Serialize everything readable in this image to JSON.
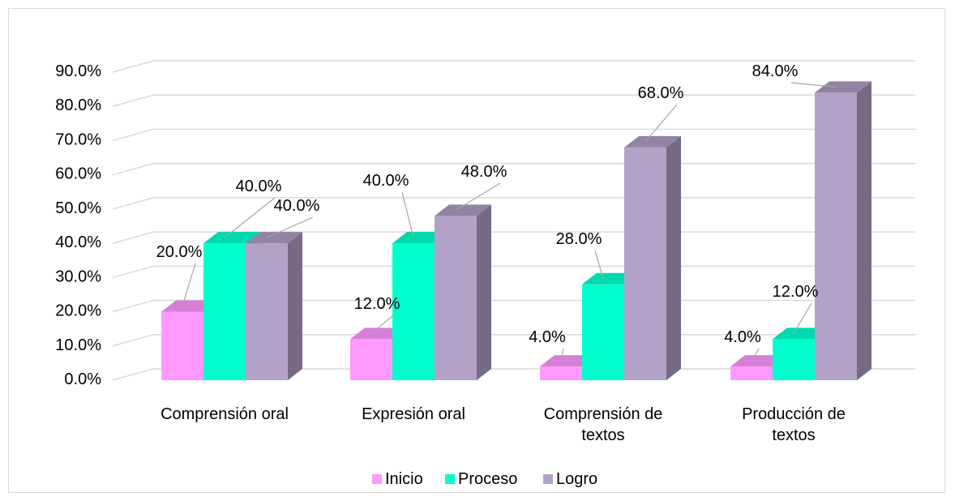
{
  "chart_data": {
    "type": "bar",
    "title": "",
    "xlabel": "",
    "ylabel": "",
    "ylim": [
      0,
      90
    ],
    "y_ticks": [
      "0.0%",
      "10.0%",
      "20.0%",
      "30.0%",
      "40.0%",
      "50.0%",
      "60.0%",
      "70.0%",
      "80.0%",
      "90.0%"
    ],
    "y_tick_values": [
      0,
      10,
      20,
      30,
      40,
      50,
      60,
      70,
      80,
      90
    ],
    "grid": true,
    "legend_position": "bottom",
    "style": "3d-clustered-column",
    "categories": [
      [
        "Comprensión oral"
      ],
      [
        "Expresión oral"
      ],
      [
        "Comprensión de",
        "textos"
      ],
      [
        "Producción de",
        "textos"
      ]
    ],
    "series": [
      {
        "name": "Inicio",
        "color": "#ff99ff",
        "side_color": "#b86db8",
        "top_color": "#d67fd6",
        "values": [
          20.0,
          12.0,
          4.0,
          4.0
        ],
        "labels": [
          "20.0%",
          "12.0%",
          "4.0%",
          "4.0%"
        ]
      },
      {
        "name": "Proceso",
        "color": "#00ffcc",
        "side_color": "#00b38f",
        "top_color": "#00d9ad",
        "values": [
          40.0,
          40.0,
          28.0,
          12.0
        ],
        "labels": [
          "40.0%",
          "40.0%",
          "28.0%",
          "12.0%"
        ]
      },
      {
        "name": "Logro",
        "color": "#b3a2c7",
        "side_color": "#766a85",
        "top_color": "#9184a3",
        "values": [
          40.0,
          48.0,
          68.0,
          84.0
        ],
        "labels": [
          "40.0%",
          "48.0%",
          "68.0%",
          "84.0%"
        ]
      }
    ]
  }
}
